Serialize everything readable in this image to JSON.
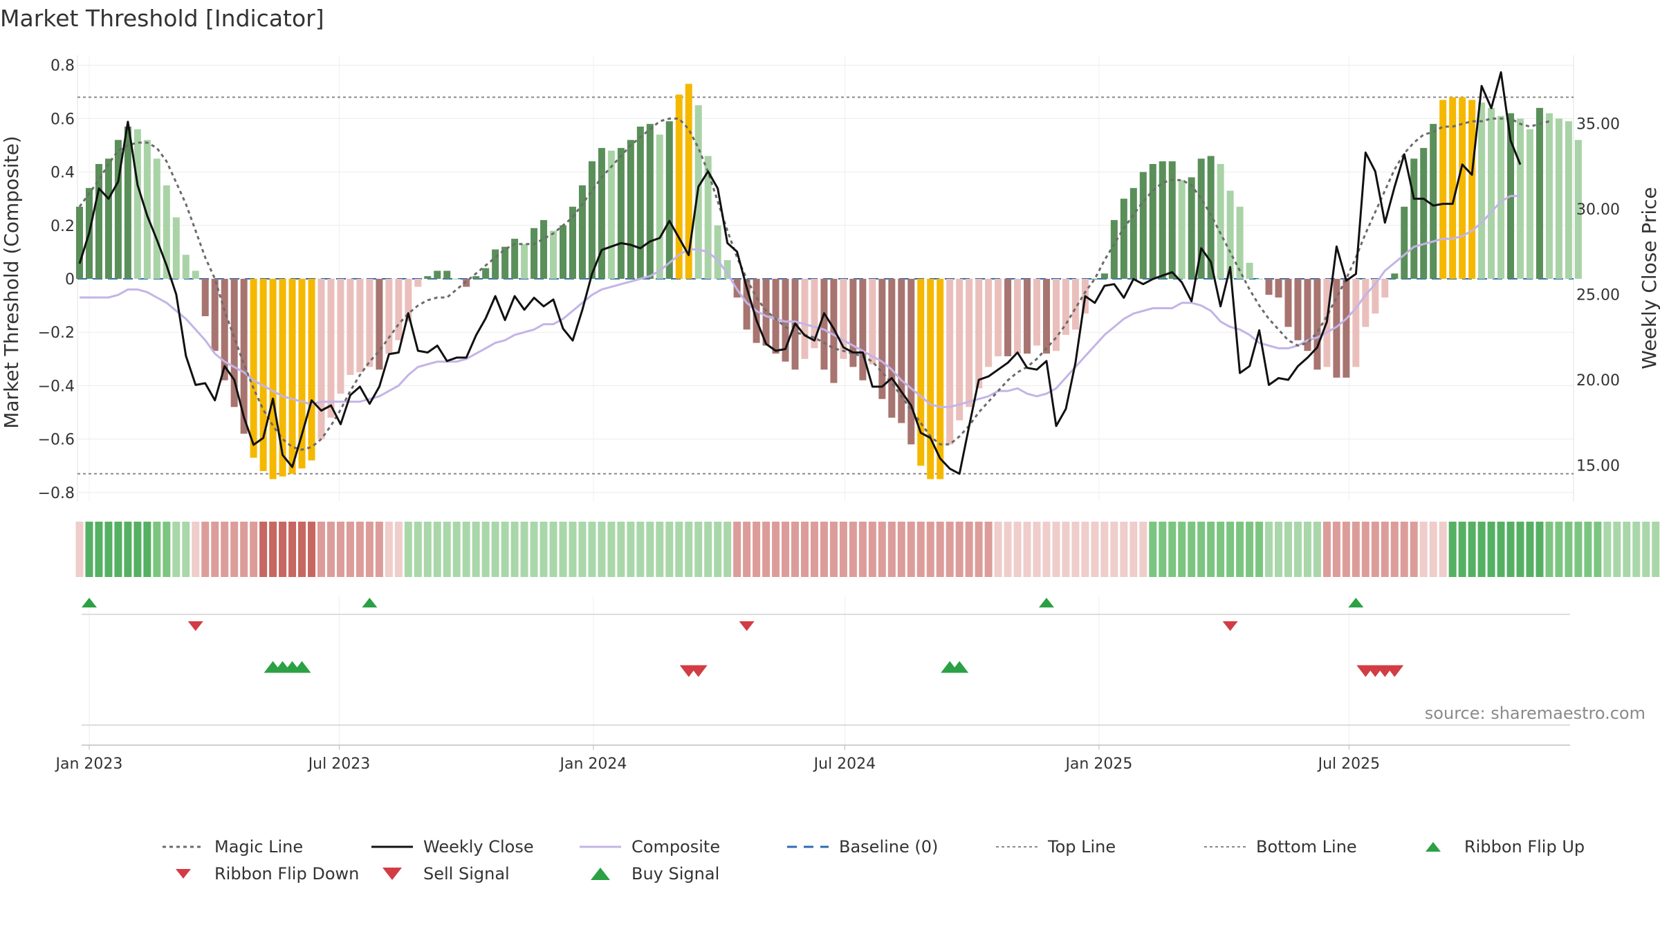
{
  "page_title": "Market Threshold [Indicator]",
  "source_note": "source: sharemaestro.com",
  "colors": {
    "up_strong": "#5a8f5a",
    "up_weak": "#a9d3a6",
    "down_strong": "#a87470",
    "down_weak": "#eabfbb",
    "extreme": "#f5b800",
    "close": "#111111",
    "composite": "#c3b4e6",
    "magic": "#6b6b6b",
    "baseline": "#2b6cb0",
    "threshold": "#888888",
    "buy": "#2ca044",
    "sell": "#d23c44",
    "flip_up": "#2ca044",
    "flip_down": "#d23c44"
  },
  "chart_data": {
    "type": "bar",
    "title": "Market Threshold [Indicator]",
    "ylabel": "Market Threshold (Composite)",
    "y2label": "Weekly Close Price",
    "ylim": [
      -0.8,
      0.8
    ],
    "y2lim": [
      12.7,
      39.0
    ],
    "yticks": [
      "0.8",
      "0.6",
      "0.4",
      "0.2",
      "0",
      "−0.2",
      "−0.4",
      "−0.6",
      "−0.8"
    ],
    "ytick_values": [
      0.8,
      0.6,
      0.4,
      0.2,
      0,
      -0.2,
      -0.4,
      -0.6,
      -0.8
    ],
    "y2ticks": [
      "35.00",
      "30.00",
      "25.00",
      "20.00",
      "15.00"
    ],
    "y2tick_values": [
      35,
      30,
      25,
      20,
      15
    ],
    "xticks": [
      "Jan 2023",
      "Jul 2023",
      "Jan 2024",
      "Jul 2024",
      "Jan 2025",
      "Jul 2025"
    ],
    "xtick_dates": [
      "2023-01-01",
      "2023-07-01",
      "2024-01-01",
      "2024-07-01",
      "2025-01-01",
      "2025-07-01"
    ],
    "start_date": "2022-12-25",
    "top_line": 0.68,
    "bottom_line": -0.73,
    "baseline": 0,
    "grid": true,
    "legend_position": "bottom",
    "bars": [
      0.27,
      0.34,
      0.43,
      0.45,
      0.52,
      0.57,
      0.56,
      0.52,
      0.45,
      0.35,
      0.23,
      0.09,
      0.03,
      -0.14,
      -0.27,
      -0.38,
      -0.48,
      -0.58,
      -0.67,
      -0.72,
      -0.75,
      -0.74,
      -0.73,
      -0.71,
      -0.68,
      -0.6,
      -0.52,
      -0.43,
      -0.36,
      -0.35,
      -0.33,
      -0.34,
      -0.28,
      -0.23,
      -0.16,
      -0.03,
      0.01,
      0.03,
      0.03,
      0.0,
      -0.03,
      0.01,
      0.04,
      0.11,
      0.12,
      0.15,
      0.13,
      0.19,
      0.22,
      0.18,
      0.2,
      0.27,
      0.35,
      0.44,
      0.49,
      0.48,
      0.49,
      0.52,
      0.57,
      0.58,
      0.54,
      0.59,
      0.69,
      0.73,
      0.65,
      0.46,
      0.2,
      0.07,
      -0.07,
      -0.19,
      -0.24,
      -0.25,
      -0.28,
      -0.31,
      -0.34,
      -0.3,
      -0.26,
      -0.34,
      -0.39,
      -0.3,
      -0.33,
      -0.38,
      -0.32,
      -0.45,
      -0.52,
      -0.54,
      -0.62,
      -0.7,
      -0.75,
      -0.75,
      -0.62,
      -0.53,
      -0.48,
      -0.41,
      -0.33,
      -0.29,
      -0.29,
      -0.28,
      -0.28,
      -0.25,
      -0.28,
      -0.27,
      -0.21,
      -0.19,
      -0.13,
      0.0,
      0.02,
      0.22,
      0.3,
      0.34,
      0.4,
      0.43,
      0.44,
      0.44,
      0.37,
      0.38,
      0.45,
      0.46,
      0.43,
      0.33,
      0.27,
      0.06,
      0.0,
      -0.06,
      -0.07,
      -0.18,
      -0.23,
      -0.27,
      -0.34,
      -0.33,
      -0.37,
      -0.37,
      -0.33,
      -0.18,
      -0.13,
      -0.07,
      0.02,
      0.27,
      0.45,
      0.49,
      0.58,
      0.67,
      0.68,
      0.68,
      0.67,
      0.66,
      0.64,
      0.61,
      0.62,
      0.6,
      0.56,
      0.64,
      0.62,
      0.6,
      0.59,
      0.52
    ],
    "series": [
      {
        "name": "Magic Line",
        "axis": "left",
        "values": [
          0.27,
          0.32,
          0.37,
          0.43,
          0.48,
          0.5,
          0.51,
          0.51,
          0.49,
          0.44,
          0.36,
          0.28,
          0.18,
          0.08,
          0.0,
          -0.12,
          -0.22,
          -0.32,
          -0.41,
          -0.49,
          -0.55,
          -0.6,
          -0.63,
          -0.64,
          -0.63,
          -0.6,
          -0.55,
          -0.49,
          -0.42,
          -0.36,
          -0.31,
          -0.27,
          -0.22,
          -0.17,
          -0.13,
          -0.1,
          -0.08,
          -0.07,
          -0.07,
          -0.04,
          -0.01,
          0.02,
          0.05,
          0.08,
          0.11,
          0.13,
          0.13,
          0.13,
          0.15,
          0.17,
          0.2,
          0.23,
          0.28,
          0.33,
          0.38,
          0.42,
          0.46,
          0.5,
          0.53,
          0.56,
          0.59,
          0.6,
          0.6,
          0.56,
          0.49,
          0.4,
          0.29,
          0.18,
          0.08,
          0.0,
          -0.07,
          -0.12,
          -0.15,
          -0.18,
          -0.2,
          -0.21,
          -0.22,
          -0.24,
          -0.26,
          -0.27,
          -0.28,
          -0.29,
          -0.31,
          -0.35,
          -0.39,
          -0.44,
          -0.49,
          -0.54,
          -0.59,
          -0.62,
          -0.62,
          -0.59,
          -0.55,
          -0.5,
          -0.46,
          -0.42,
          -0.38,
          -0.35,
          -0.33,
          -0.3,
          -0.26,
          -0.22,
          -0.17,
          -0.11,
          -0.05,
          0.0,
          0.07,
          0.13,
          0.19,
          0.24,
          0.29,
          0.33,
          0.36,
          0.37,
          0.37,
          0.35,
          0.3,
          0.24,
          0.17,
          0.1,
          0.03,
          -0.04,
          -0.1,
          -0.15,
          -0.19,
          -0.23,
          -0.25,
          -0.24,
          -0.2,
          -0.14,
          -0.07,
          0.0,
          0.08,
          0.17,
          0.25,
          0.33,
          0.41,
          0.47,
          0.51,
          0.54,
          0.55,
          0.57,
          0.57,
          0.58,
          0.59,
          0.59,
          0.6,
          0.6,
          0.6,
          0.58,
          0.57,
          0.58,
          0.59
        ]
      },
      {
        "name": "Weekly Close",
        "axis": "right",
        "values": [
          26.8,
          28.6,
          31.2,
          30.6,
          31.6,
          35.1,
          31.4,
          29.6,
          28.2,
          26.7,
          25.0,
          21.4,
          19.7,
          19.8,
          18.8,
          20.8,
          20.0,
          17.8,
          16.2,
          16.6,
          18.9,
          15.6,
          14.9,
          16.8,
          18.8,
          18.2,
          18.5,
          17.4,
          19.1,
          19.6,
          18.6,
          19.6,
          21.5,
          21.6,
          23.9,
          21.7,
          21.6,
          22.0,
          21.1,
          21.3,
          21.3,
          22.6,
          23.6,
          24.9,
          23.5,
          24.9,
          24.1,
          24.8,
          24.3,
          24.7,
          23.0,
          22.3,
          24.1,
          26.2,
          27.6,
          27.8,
          28.0,
          27.9,
          27.7,
          28.1,
          28.3,
          29.3,
          28.3,
          27.3,
          31.3,
          32.2,
          31.2,
          28.0,
          27.5,
          25.4,
          23.5,
          22.1,
          21.7,
          21.8,
          23.3,
          22.6,
          22.3,
          23.9,
          23.0,
          21.9,
          21.6,
          21.6,
          19.6,
          19.6,
          20.1,
          19.3,
          18.5,
          16.9,
          16.6,
          15.4,
          14.8,
          14.5,
          17.3,
          20.0,
          20.2,
          20.6,
          21.0,
          21.6,
          20.7,
          20.6,
          21.1,
          17.3,
          18.3,
          21.0,
          24.9,
          24.5,
          25.5,
          25.6,
          24.8,
          25.9,
          25.6,
          25.9,
          26.1,
          26.3,
          25.7,
          24.6,
          27.7,
          26.9,
          24.3,
          26.6,
          20.4,
          20.8,
          22.9,
          19.7,
          20.1,
          20.0,
          20.8,
          21.3,
          21.9,
          23.4,
          27.8,
          25.8,
          26.2,
          33.3,
          32.2,
          29.2,
          31.3,
          33.2,
          30.6,
          30.6,
          30.2,
          30.3,
          30.3,
          32.6,
          32.0,
          37.2,
          35.9,
          38.0,
          34.0,
          32.6
        ]
      },
      {
        "name": "Composite",
        "axis": "left",
        "values": [
          -0.07,
          -0.07,
          -0.07,
          -0.07,
          -0.06,
          -0.04,
          -0.04,
          -0.05,
          -0.07,
          -0.09,
          -0.12,
          -0.15,
          -0.19,
          -0.23,
          -0.28,
          -0.31,
          -0.33,
          -0.35,
          -0.38,
          -0.4,
          -0.42,
          -0.44,
          -0.45,
          -0.46,
          -0.47,
          -0.46,
          -0.46,
          -0.46,
          -0.46,
          -0.46,
          -0.45,
          -0.44,
          -0.42,
          -0.4,
          -0.36,
          -0.33,
          -0.32,
          -0.31,
          -0.31,
          -0.31,
          -0.3,
          -0.28,
          -0.26,
          -0.24,
          -0.23,
          -0.21,
          -0.2,
          -0.19,
          -0.17,
          -0.17,
          -0.15,
          -0.12,
          -0.09,
          -0.06,
          -0.04,
          -0.03,
          -0.02,
          -0.01,
          0.0,
          0.01,
          0.03,
          0.06,
          0.09,
          0.11,
          0.11,
          0.1,
          0.07,
          0.02,
          -0.04,
          -0.09,
          -0.12,
          -0.14,
          -0.15,
          -0.16,
          -0.16,
          -0.17,
          -0.18,
          -0.19,
          -0.21,
          -0.23,
          -0.25,
          -0.27,
          -0.29,
          -0.31,
          -0.34,
          -0.38,
          -0.41,
          -0.44,
          -0.47,
          -0.48,
          -0.48,
          -0.47,
          -0.46,
          -0.45,
          -0.44,
          -0.42,
          -0.42,
          -0.41,
          -0.43,
          -0.44,
          -0.43,
          -0.41,
          -0.37,
          -0.33,
          -0.29,
          -0.25,
          -0.21,
          -0.18,
          -0.15,
          -0.13,
          -0.12,
          -0.11,
          -0.11,
          -0.11,
          -0.09,
          -0.09,
          -0.1,
          -0.12,
          -0.16,
          -0.18,
          -0.19,
          -0.21,
          -0.24,
          -0.25,
          -0.26,
          -0.26,
          -0.25,
          -0.23,
          -0.22,
          -0.2,
          -0.18,
          -0.15,
          -0.11,
          -0.06,
          -0.02,
          0.03,
          0.06,
          0.09,
          0.12,
          0.13,
          0.14,
          0.15,
          0.15,
          0.16,
          0.18,
          0.21,
          0.25,
          0.29,
          0.31,
          0.31
        ]
      }
    ],
    "ribbon": [
      -1,
      3,
      3,
      3,
      3,
      3,
      3,
      3,
      2,
      2,
      1,
      1,
      -1,
      -2,
      -2,
      -2,
      -2,
      -2,
      -2,
      -3,
      -3,
      -3,
      -3,
      -3,
      -3,
      -2,
      -2,
      -2,
      -2,
      -2,
      -2,
      -2,
      -1,
      -1,
      1,
      1,
      1,
      1,
      1,
      1,
      1,
      1,
      1,
      1,
      1,
      1,
      1,
      1,
      1,
      1,
      1,
      1,
      1,
      1,
      1,
      1,
      1,
      1,
      1,
      1,
      1,
      1,
      1,
      1,
      1,
      1,
      1,
      1,
      -2,
      -2,
      -2,
      -2,
      -2,
      -2,
      -2,
      -2,
      -2,
      -2,
      -2,
      -2,
      -2,
      -2,
      -2,
      -2,
      -2,
      -2,
      -2,
      -2,
      -2,
      -2,
      -2,
      -2,
      -2,
      -2,
      -2,
      -1,
      -1,
      -1,
      -1,
      -1,
      -1,
      -1,
      -1,
      -1,
      -1,
      -1,
      -1,
      -1,
      -1,
      -1,
      -1,
      2,
      2,
      2,
      2,
      2,
      2,
      2,
      2,
      2,
      2,
      2,
      2,
      1,
      1,
      1,
      1,
      1,
      1,
      -2,
      -2,
      -2,
      -2,
      -2,
      -2,
      -2,
      -2,
      -2,
      -2,
      -1,
      -1,
      -1,
      3,
      3,
      3,
      3,
      3,
      3,
      3,
      3,
      3,
      3,
      2,
      2,
      2,
      2,
      2,
      2,
      1,
      1,
      1,
      1,
      1,
      1
    ],
    "ribbon_flip_up_weeks": [
      1,
      30,
      100,
      132
    ],
    "ribbon_flip_down_weeks": [
      12,
      69,
      119
    ],
    "buy_signal_weeks": [
      20,
      21,
      22,
      23,
      90,
      91
    ],
    "sell_signal_weeks": [
      63,
      64,
      133,
      134,
      135,
      136
    ],
    "legend": [
      {
        "label": "Magic Line",
        "kind": "dotted",
        "color": "#6b6b6b"
      },
      {
        "label": "Weekly Close",
        "kind": "solid",
        "color": "#111111"
      },
      {
        "label": "Composite",
        "kind": "solid",
        "color": "#c3b4e6"
      },
      {
        "label": "Baseline (0)",
        "kind": "dashed",
        "color": "#2b6cb0"
      },
      {
        "label": "Top Line",
        "kind": "dotted-thin",
        "color": "#888888"
      },
      {
        "label": "Bottom Line",
        "kind": "dotted-thin",
        "color": "#888888"
      },
      {
        "label": "Ribbon Flip Up",
        "kind": "tri-up",
        "color": "#2ca044"
      },
      {
        "label": "Ribbon Flip Down",
        "kind": "tri-down",
        "color": "#d23c44"
      },
      {
        "label": "Sell Signal",
        "kind": "tri-down-big",
        "color": "#d23c44"
      },
      {
        "label": "Buy Signal",
        "kind": "tri-up-big",
        "color": "#2ca044"
      }
    ]
  }
}
